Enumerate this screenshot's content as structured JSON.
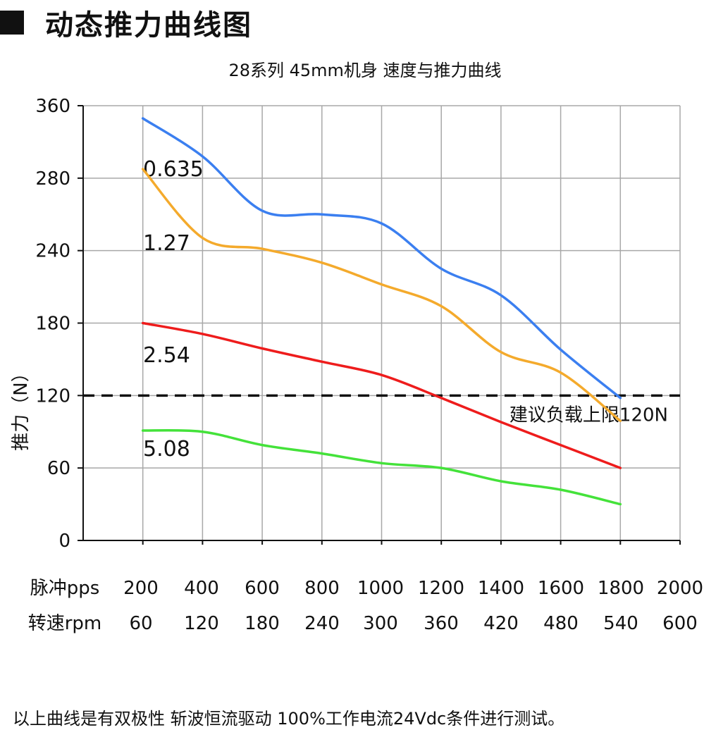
{
  "header": {
    "title": "动态推力曲线图"
  },
  "footer": {
    "note": "以上曲线是有双极性 斩波恒流驱动 100%工作电流24Vdc条件进行测试。"
  },
  "chart_data": {
    "type": "line",
    "title": "28系列 45mm机身 速度与推力曲线",
    "ylabel": "推力（N）",
    "y_ticks": [
      0,
      60,
      120,
      180,
      240,
      280,
      360
    ],
    "ylim": [
      0,
      360
    ],
    "x_pps": [
      200,
      400,
      600,
      800,
      1000,
      1200,
      1400,
      1600,
      1800,
      2000
    ],
    "x_rpm": [
      60,
      120,
      180,
      240,
      300,
      360,
      420,
      480,
      540,
      600
    ],
    "row_labels": {
      "pps": "脉冲pps",
      "rpm": "转速rpm"
    },
    "grid": true,
    "reference_line": {
      "value": 120,
      "label": "建议负载上限120N",
      "style": "dashed"
    },
    "series": [
      {
        "name": "0.635",
        "color": "#3b7ff0",
        "x": [
          200,
          400,
          600,
          800,
          1000,
          1200,
          1400,
          1600,
          1800
        ],
        "y": [
          346,
          304,
          262,
          260,
          255,
          225,
          203,
          158,
          118
        ]
      },
      {
        "name": "1.27",
        "color": "#f4aa2c",
        "x": [
          200,
          400,
          600,
          800,
          1000,
          1200,
          1400,
          1600,
          1800
        ],
        "y": [
          290,
          247,
          241,
          230,
          212,
          194,
          156,
          139,
          99
        ]
      },
      {
        "name": "2.54",
        "color": "#ee1c1c",
        "x": [
          200,
          400,
          600,
          800,
          1000,
          1200,
          1400,
          1600,
          1800
        ],
        "y": [
          180,
          171,
          159,
          148,
          137,
          118,
          98,
          79,
          60
        ]
      },
      {
        "name": "5.08",
        "color": "#44e23a",
        "x": [
          200,
          400,
          600,
          800,
          1000,
          1200,
          1400,
          1600,
          1800
        ],
        "y": [
          91,
          90,
          79,
          72,
          64,
          60,
          49,
          42,
          30
        ]
      }
    ]
  }
}
